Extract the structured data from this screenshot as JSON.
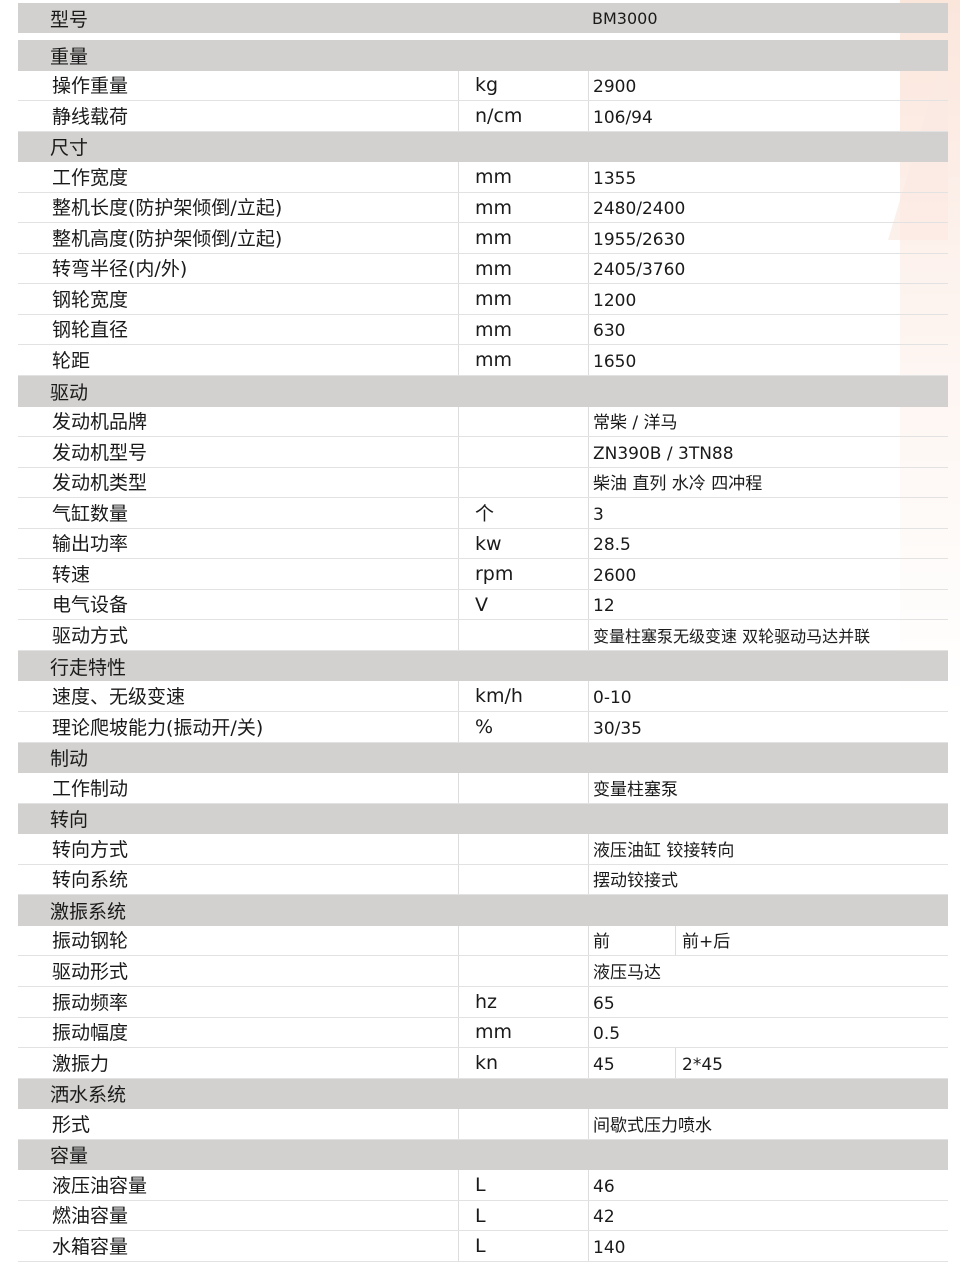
{
  "model": {
    "label": "型号",
    "value": "BM3000"
  },
  "sections": [
    {
      "title": "重量",
      "rows": [
        {
          "label": "操作重量",
          "unit": "kg",
          "values": [
            "2900"
          ]
        },
        {
          "label": "静线载荷",
          "unit": "n/cm",
          "values": [
            "106/94"
          ]
        }
      ]
    },
    {
      "title": "尺寸",
      "rows": [
        {
          "label": "工作宽度",
          "unit": "mm",
          "values": [
            "1355"
          ]
        },
        {
          "label": "整机长度(防护架倾倒/立起)",
          "unit": "mm",
          "values": [
            "2480/2400"
          ]
        },
        {
          "label": "整机高度(防护架倾倒/立起)",
          "unit": "mm",
          "values": [
            "1955/2630"
          ]
        },
        {
          "label": "转弯半径(内/外)",
          "unit": "mm",
          "values": [
            "2405/3760"
          ]
        },
        {
          "label": "钢轮宽度",
          "unit": "mm",
          "values": [
            "1200"
          ]
        },
        {
          "label": "钢轮直径",
          "unit": "mm",
          "values": [
            "630"
          ]
        },
        {
          "label": "轮距",
          "unit": "mm",
          "values": [
            "1650"
          ]
        }
      ]
    },
    {
      "title": "驱动",
      "rows": [
        {
          "label": "发动机品牌",
          "unit": "",
          "values": [
            "常柴 / 洋马"
          ]
        },
        {
          "label": "发动机型号",
          "unit": "",
          "values": [
            "ZN390B / 3TN88"
          ]
        },
        {
          "label": "发动机类型",
          "unit": "",
          "values": [
            "柴油 直列 水冷 四冲程"
          ]
        },
        {
          "label": "气缸数量",
          "unit": "个",
          "values": [
            "3"
          ]
        },
        {
          "label": "输出功率",
          "unit": "kw",
          "values": [
            "28.5"
          ]
        },
        {
          "label": "转速",
          "unit": "rpm",
          "values": [
            "2600"
          ]
        },
        {
          "label": "电气设备",
          "unit": "V",
          "values": [
            "12"
          ]
        },
        {
          "label": "驱动方式",
          "unit": "",
          "values": [
            "变量柱塞泵无级变速 双轮驱动马达并联"
          ]
        }
      ]
    },
    {
      "title": "行走特性",
      "rows": [
        {
          "label": "速度、无级变速",
          "unit": "km/h",
          "values": [
            "0-10"
          ]
        },
        {
          "label": "理论爬坡能力(振动开/关)",
          "unit": "%",
          "values": [
            "30/35"
          ]
        }
      ]
    },
    {
      "title": "制动",
      "rows": [
        {
          "label": "工作制动",
          "unit": "",
          "values": [
            "变量柱塞泵"
          ]
        }
      ]
    },
    {
      "title": "转向",
      "rows": [
        {
          "label": "转向方式",
          "unit": "",
          "values": [
            "液压油缸 铰接转向"
          ]
        },
        {
          "label": "转向系统",
          "unit": "",
          "values": [
            "摆动铰接式"
          ]
        }
      ]
    },
    {
      "title": "激振系统",
      "rows": [
        {
          "label": "振动钢轮",
          "unit": "",
          "values": [
            "前",
            "前+后"
          ]
        },
        {
          "label": "驱动形式",
          "unit": "",
          "values": [
            "液压马达"
          ]
        },
        {
          "label": "振动频率",
          "unit": "hz",
          "values": [
            "65"
          ]
        },
        {
          "label": "振动幅度",
          "unit": "mm",
          "values": [
            "0.5"
          ]
        },
        {
          "label": "激振力",
          "unit": "kn",
          "values": [
            "45",
            "2*45"
          ]
        }
      ]
    },
    {
      "title": "洒水系统",
      "rows": [
        {
          "label": "形式",
          "unit": "",
          "values": [
            "间歇式压力喷水"
          ]
        }
      ]
    },
    {
      "title": "容量",
      "rows": [
        {
          "label": "液压油容量",
          "unit": "L",
          "values": [
            "46"
          ]
        },
        {
          "label": "燃油容量",
          "unit": "L",
          "values": [
            "42"
          ]
        },
        {
          "label": "水箱容量",
          "unit": "L",
          "values": [
            "140"
          ]
        }
      ]
    }
  ]
}
